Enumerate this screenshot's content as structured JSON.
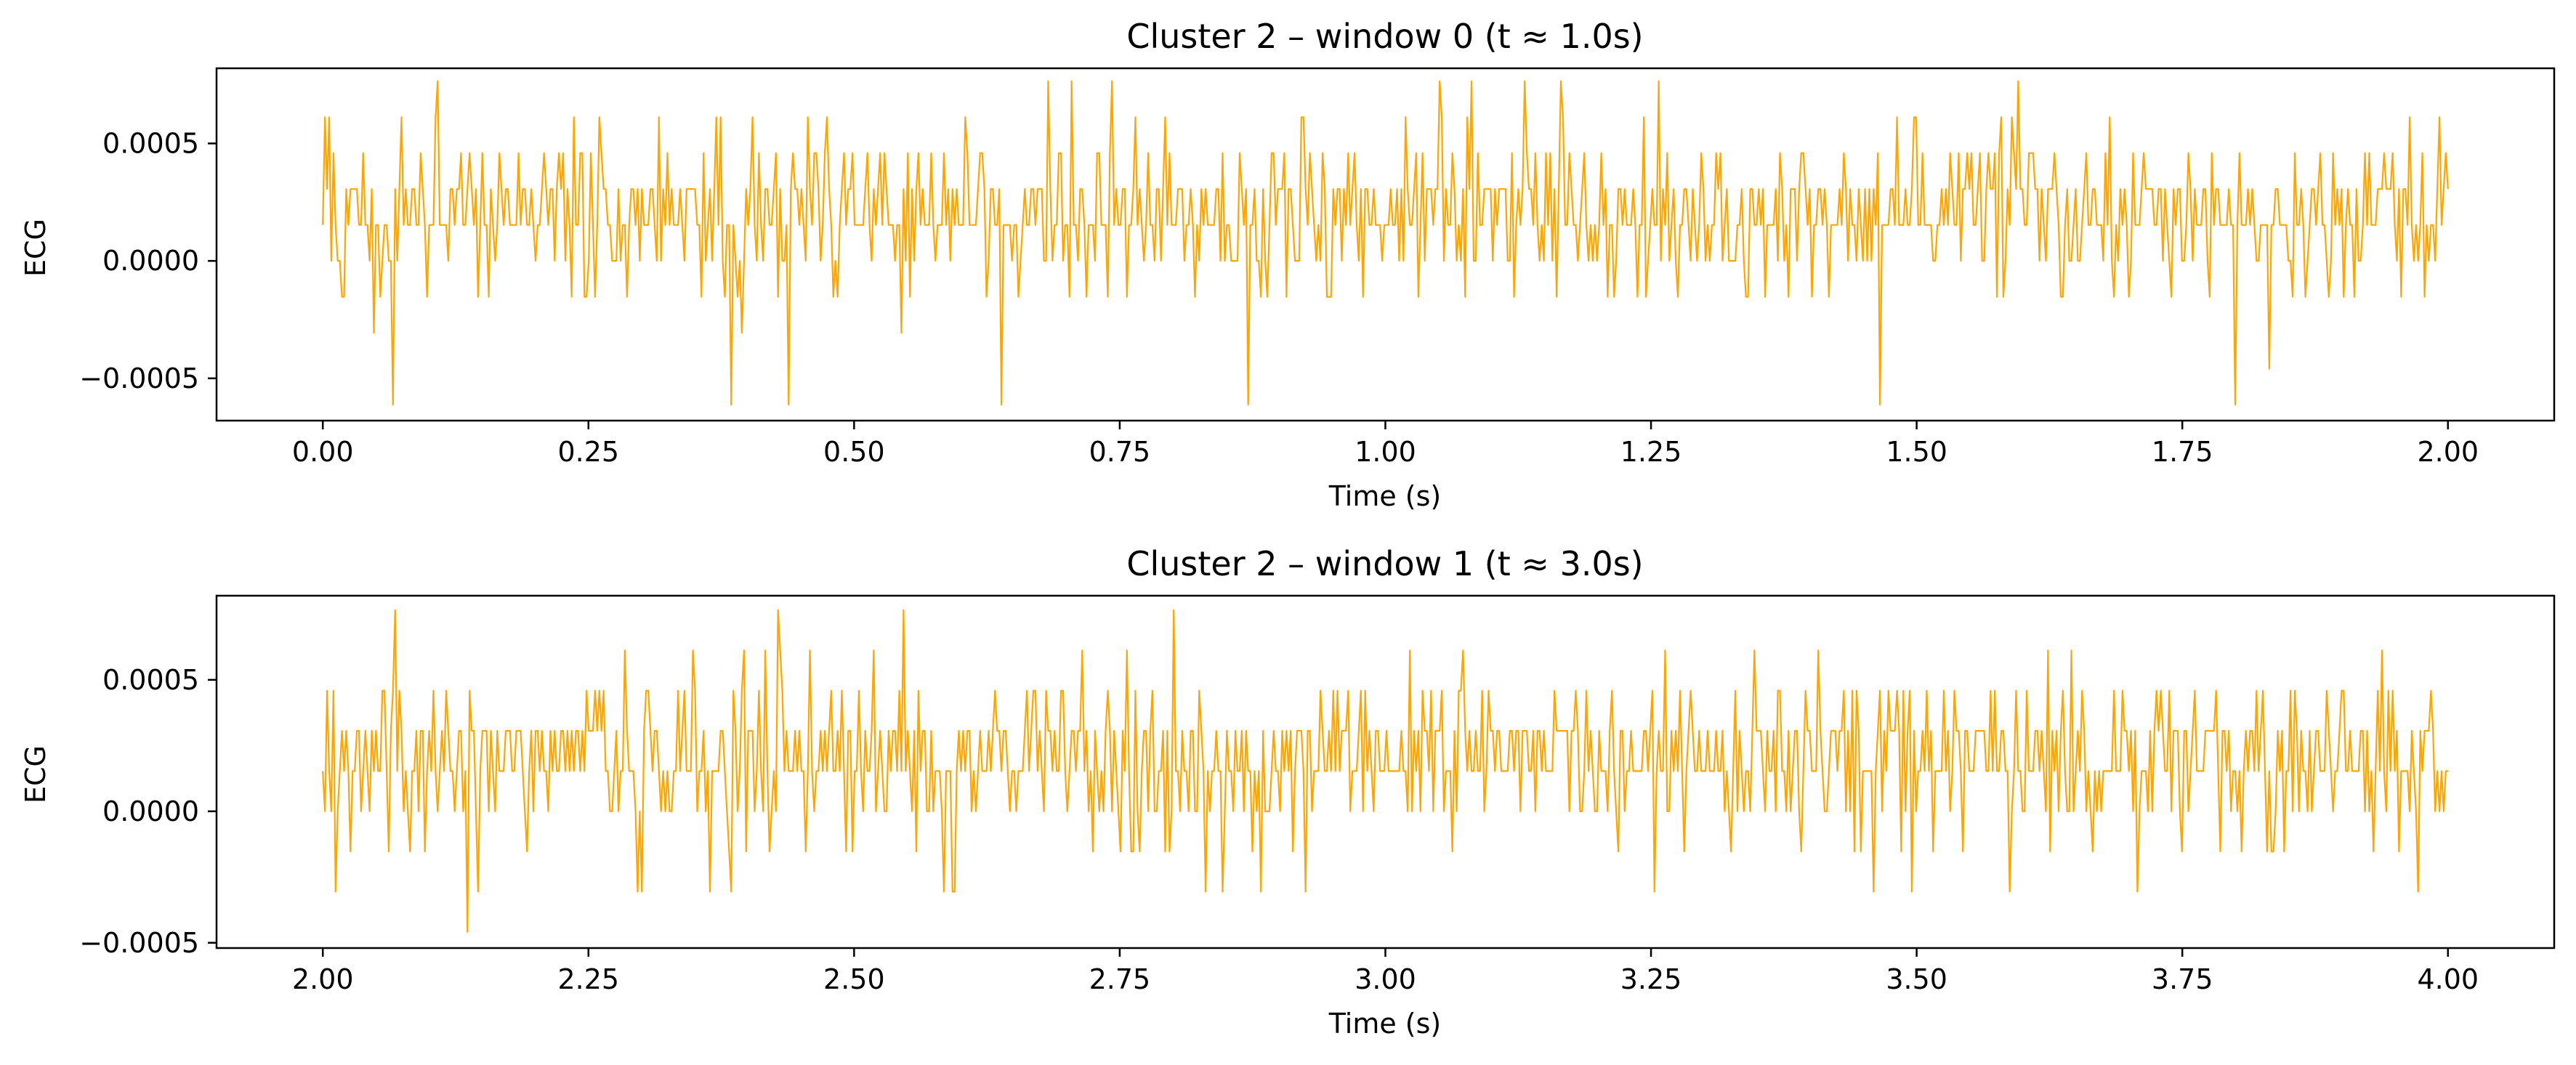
{
  "chart_data": [
    {
      "type": "line",
      "title": "Cluster 2 – window 0 (t ≈ 1.0s)",
      "xlabel": "Time (s)",
      "ylabel": "ECG",
      "xlim": [
        -0.1,
        2.1
      ],
      "ylim": [
        -0.00068,
        0.00082
      ],
      "x_ticks": [
        0.0,
        0.25,
        0.5,
        0.75,
        1.0,
        1.25,
        1.5,
        1.75,
        2.0
      ],
      "x_tick_labels": [
        "0.00",
        "0.25",
        "0.50",
        "0.75",
        "1.00",
        "1.25",
        "1.50",
        "1.75",
        "2.00"
      ],
      "y_ticks": [
        -0.0005,
        0.0,
        0.0005
      ],
      "y_tick_labels": [
        "−0.0005",
        "0.0000",
        "0.0005"
      ],
      "series": [
        {
          "name": "ECG",
          "color": "#ffa500",
          "t_start": 0.0,
          "t_end": 2.0,
          "n_samples": 1000,
          "quantization_step": 0.000153,
          "level_probabilities": {
            "-4": 0.006,
            "-1": 0.06,
            "0": 0.14,
            "1": 0.36,
            "2": 0.29,
            "3": 0.11,
            "4": 0.028,
            "5": 0.006
          },
          "seed": 7,
          "spikes": [
            {
              "t": 0.067,
              "level": -4
            },
            {
              "t": 0.108,
              "level": 5
            },
            {
              "t": 0.704,
              "level": 5
            },
            {
              "t": 0.742,
              "level": 5
            },
            {
              "t": 1.052,
              "level": 5
            },
            {
              "t": 1.132,
              "level": 5
            },
            {
              "t": 1.258,
              "level": 5
            },
            {
              "t": 1.8,
              "level": -4
            },
            {
              "t": 1.832,
              "level": -3
            },
            {
              "t": 0.048,
              "level": -2
            },
            {
              "t": 0.394,
              "level": -2
            },
            {
              "t": 0.544,
              "level": -2
            }
          ]
        }
      ]
    },
    {
      "type": "line",
      "title": "Cluster 2 – window 1 (t ≈ 3.0s)",
      "xlabel": "Time (s)",
      "ylabel": "ECG",
      "xlim": [
        1.9,
        4.1
      ],
      "ylim": [
        -0.00052,
        0.00082
      ],
      "x_ticks": [
        2.0,
        2.25,
        2.5,
        2.75,
        3.0,
        3.25,
        3.5,
        3.75,
        4.0
      ],
      "x_tick_labels": [
        "2.00",
        "2.25",
        "2.50",
        "2.75",
        "3.00",
        "3.25",
        "3.50",
        "3.75",
        "4.00"
      ],
      "y_ticks": [
        -0.0005,
        0.0,
        0.0005
      ],
      "y_tick_labels": [
        "−0.0005",
        "0.0000",
        "0.0005"
      ],
      "series": [
        {
          "name": "ECG",
          "color": "#ffa500",
          "t_start": 2.0,
          "t_end": 4.0,
          "n_samples": 1000,
          "quantization_step": 0.000153,
          "level_probabilities": {
            "-2": 0.01,
            "-1": 0.05,
            "0": 0.15,
            "1": 0.36,
            "2": 0.3,
            "3": 0.1,
            "4": 0.03
          },
          "seed": 19,
          "spikes": [
            {
              "t": 2.068,
              "level": 5
            },
            {
              "t": 2.136,
              "level": -3
            },
            {
              "t": 2.428,
              "level": 5
            },
            {
              "t": 2.546,
              "level": 5
            },
            {
              "t": 2.8,
              "level": 5
            },
            {
              "t": 2.012,
              "level": -2
            },
            {
              "t": 2.385,
              "level": -2
            },
            {
              "t": 2.585,
              "level": -2
            },
            {
              "t": 2.83,
              "level": -2
            },
            {
              "t": 2.925,
              "level": -2
            },
            {
              "t": 3.495,
              "level": -2
            },
            {
              "t": 3.588,
              "level": -2
            }
          ]
        }
      ]
    }
  ]
}
